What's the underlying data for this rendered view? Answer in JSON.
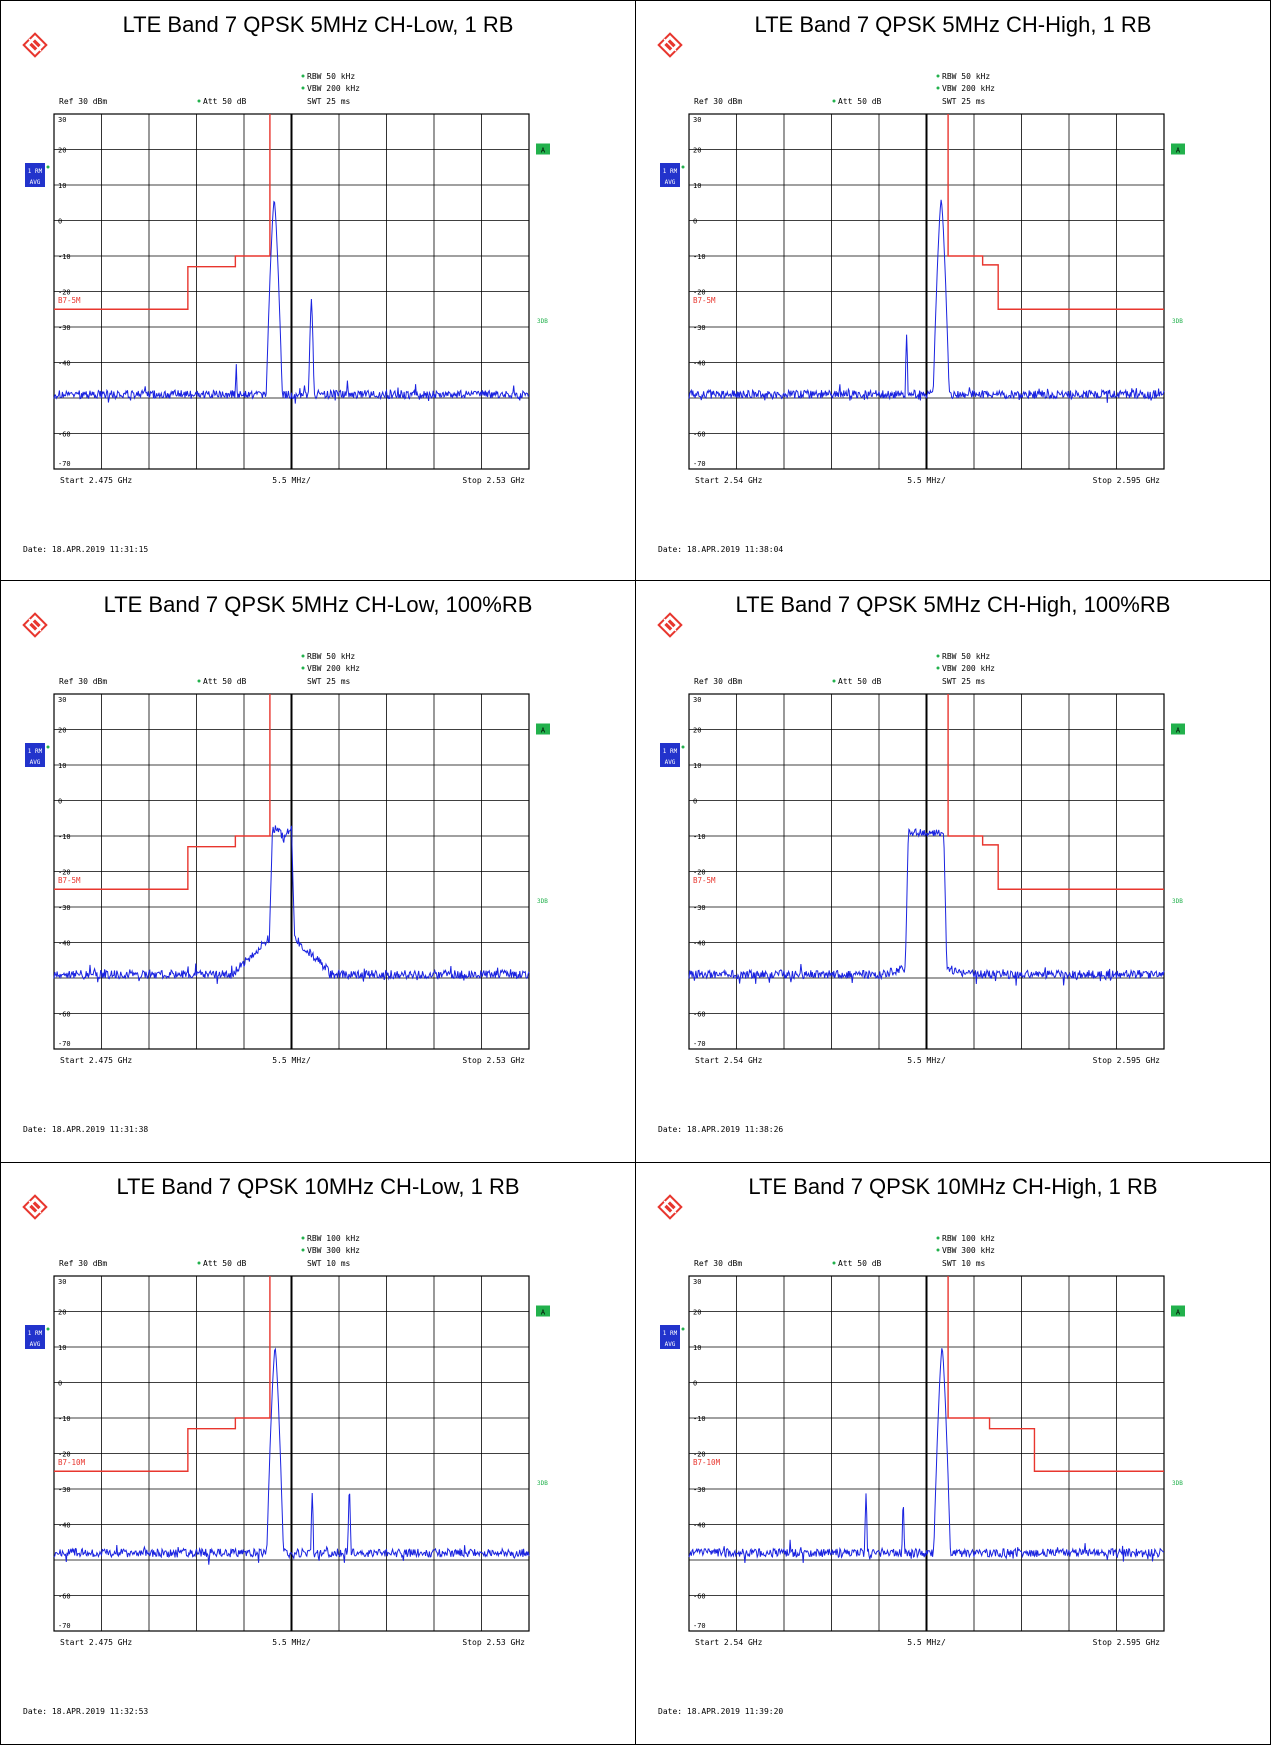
{
  "colors": {
    "trace": "#1a23e0",
    "limit": "#e8362e",
    "grid": "#000000",
    "label_red": "#e8362e",
    "badge_green": "#22b14c",
    "trace_badge": "#2233cc"
  },
  "icons": {
    "logo": "rohde-schwarz-logo-icon",
    "marker": "star-marker-icon"
  },
  "common": {
    "ref_label": "Ref  30 dBm",
    "att_label": "Att  50 dB",
    "trace_badge_top": "1 RM",
    "trace_badge_bottom": "AVG",
    "badge_a": "A",
    "badge_3db": "3DB",
    "div_label": "5.5 MHz/",
    "y_ticks": [
      30,
      20,
      10,
      0,
      -10,
      -20,
      -30,
      -40,
      -50,
      -60,
      -70
    ],
    "y_tick_labels": [
      "30",
      "20",
      "10",
      "0",
      "-10",
      "-20",
      "-30",
      "-40",
      "",
      "-60",
      "-70"
    ]
  },
  "chart_data": [
    {
      "type": "line",
      "title": "LTE Band 7 QPSK 5MHz CH-Low, 1 RB",
      "rbw": "RBW  50 kHz",
      "vbw": "VBW  200 kHz",
      "swt": "SWT  25 ms",
      "start_label": "Start  2.475 GHz",
      "stop_label": "Stop  2.53 GHz",
      "date": "Date: 18.APR.2019  11:31:15",
      "limit_label": "B7-5M",
      "xlim": [
        2475,
        2530
      ],
      "ylim": [
        -70,
        30
      ],
      "noise_floor": -49,
      "limit_line": [
        [
          2475,
          -25
        ],
        [
          2490.5,
          -25
        ],
        [
          2490.5,
          -13
        ],
        [
          2496,
          -13
        ],
        [
          2496,
          -10
        ],
        [
          2500,
          -10
        ],
        [
          2500,
          30
        ]
      ],
      "peaks": [
        {
          "x": 2500.5,
          "y": 6,
          "w": 0.35
        },
        {
          "x": 2504.8,
          "y": -22,
          "w": 0.2
        },
        {
          "x": 2496.1,
          "y": -40,
          "w": 0.15
        },
        {
          "x": 2509.0,
          "y": -44,
          "w": 0.15
        }
      ],
      "blocks": []
    },
    {
      "type": "line",
      "title": "LTE Band 7 QPSK 5MHz CH-High, 1 RB",
      "rbw": "RBW  50 kHz",
      "vbw": "VBW  200 kHz",
      "swt": "SWT  25 ms",
      "start_label": "Start  2.54 GHz",
      "stop_label": "Stop  2.595 GHz",
      "date": "Date: 18.APR.2019  11:38:04",
      "limit_label": "B7-5M",
      "xlim": [
        2540,
        2595
      ],
      "ylim": [
        -70,
        30
      ],
      "noise_floor": -49,
      "limit_line": [
        [
          2570,
          30
        ],
        [
          2570,
          -10
        ],
        [
          2574,
          -10
        ],
        [
          2574,
          -12.5
        ],
        [
          2575.8,
          -12.5
        ],
        [
          2575.8,
          -25
        ],
        [
          2595,
          -25
        ]
      ],
      "peaks": [
        {
          "x": 2569.2,
          "y": 6,
          "w": 0.35
        },
        {
          "x": 2565.2,
          "y": -32,
          "w": 0.15
        },
        {
          "x": 2561.0,
          "y": -47,
          "w": 0.15
        }
      ],
      "blocks": []
    },
    {
      "type": "line",
      "title": "LTE Band 7 QPSK 5MHz CH-Low, 100%RB",
      "rbw": "RBW  50 kHz",
      "vbw": "VBW  200 kHz",
      "swt": "SWT  25 ms",
      "start_label": "Start  2.475 GHz",
      "stop_label": "Stop  2.53 GHz",
      "date": "Date: 18.APR.2019  11:31:38",
      "limit_label": "B7-5M",
      "xlim": [
        2475,
        2530
      ],
      "ylim": [
        -70,
        30
      ],
      "noise_floor": -49,
      "limit_line": [
        [
          2475,
          -25
        ],
        [
          2490.5,
          -25
        ],
        [
          2490.5,
          -13
        ],
        [
          2496,
          -13
        ],
        [
          2496,
          -10
        ],
        [
          2500,
          -10
        ],
        [
          2500,
          30
        ]
      ],
      "peaks": [],
      "blocks": [
        {
          "x0": 2500.3,
          "x1": 2502.5,
          "y": -8,
          "shoulder": -38,
          "shoulder_w": 4.3,
          "ripple": true
        }
      ]
    },
    {
      "type": "line",
      "title": "LTE Band 7 QPSK 5MHz CH-High, 100%RB",
      "rbw": "RBW  50 kHz",
      "vbw": "VBW  200 kHz",
      "swt": "SWT  25 ms",
      "start_label": "Start  2.54 GHz",
      "stop_label": "Stop  2.595 GHz",
      "date": "Date: 18.APR.2019  11:38:26",
      "limit_label": "B7-5M",
      "xlim": [
        2540,
        2595
      ],
      "ylim": [
        -70,
        30
      ],
      "noise_floor": -49,
      "limit_line": [
        [
          2570,
          30
        ],
        [
          2570,
          -10
        ],
        [
          2574,
          -10
        ],
        [
          2574,
          -12.5
        ],
        [
          2575.8,
          -12.5
        ],
        [
          2575.8,
          -25
        ],
        [
          2595,
          -25
        ]
      ],
      "peaks": [],
      "blocks": [
        {
          "x0": 2565.4,
          "x1": 2569.5,
          "y": -9,
          "shoulder": -47,
          "shoulder_w": 2.5,
          "ripple": false
        }
      ]
    },
    {
      "type": "line",
      "title": "LTE Band 7 QPSK 10MHz CH-Low, 1 RB",
      "rbw": "RBW  100 kHz",
      "vbw": "VBW  300 kHz",
      "swt": "SWT  10 ms",
      "start_label": "Start  2.475 GHz",
      "stop_label": "Stop  2.53 GHz",
      "date": "Date: 18.APR.2019  11:32:53",
      "limit_label": "B7-10M",
      "xlim": [
        2475,
        2530
      ],
      "ylim": [
        -70,
        30
      ],
      "noise_floor": -48,
      "limit_line": [
        [
          2475,
          -25
        ],
        [
          2490.5,
          -25
        ],
        [
          2490.5,
          -13
        ],
        [
          2496,
          -13
        ],
        [
          2496,
          -10
        ],
        [
          2500,
          -10
        ],
        [
          2500,
          30
        ]
      ],
      "peaks": [
        {
          "x": 2500.6,
          "y": 10,
          "w": 0.35
        },
        {
          "x": 2504.9,
          "y": -31,
          "w": 0.15
        },
        {
          "x": 2509.2,
          "y": -29,
          "w": 0.15
        }
      ],
      "blocks": []
    },
    {
      "type": "line",
      "title": "LTE Band 7 QPSK 10MHz CH-High, 1 RB",
      "rbw": "RBW  100 kHz",
      "vbw": "VBW  300 kHz",
      "swt": "SWT  10 ms",
      "start_label": "Start  2.54 GHz",
      "stop_label": "Stop  2.595 GHz",
      "date": "Date: 18.APR.2019  11:39:20",
      "limit_label": "B7-10M",
      "xlim": [
        2540,
        2595
      ],
      "ylim": [
        -70,
        30
      ],
      "noise_floor": -48,
      "limit_line": [
        [
          2570,
          30
        ],
        [
          2570,
          -10
        ],
        [
          2574.8,
          -10
        ],
        [
          2574.8,
          -13
        ],
        [
          2580,
          -13
        ],
        [
          2580,
          -25
        ],
        [
          2595,
          -25
        ]
      ],
      "peaks": [
        {
          "x": 2569.3,
          "y": 10,
          "w": 0.35
        },
        {
          "x": 2564.8,
          "y": -33,
          "w": 0.15
        },
        {
          "x": 2560.5,
          "y": -31,
          "w": 0.15
        },
        {
          "x": 2551.7,
          "y": -44,
          "w": 0.15
        }
      ],
      "blocks": []
    }
  ]
}
